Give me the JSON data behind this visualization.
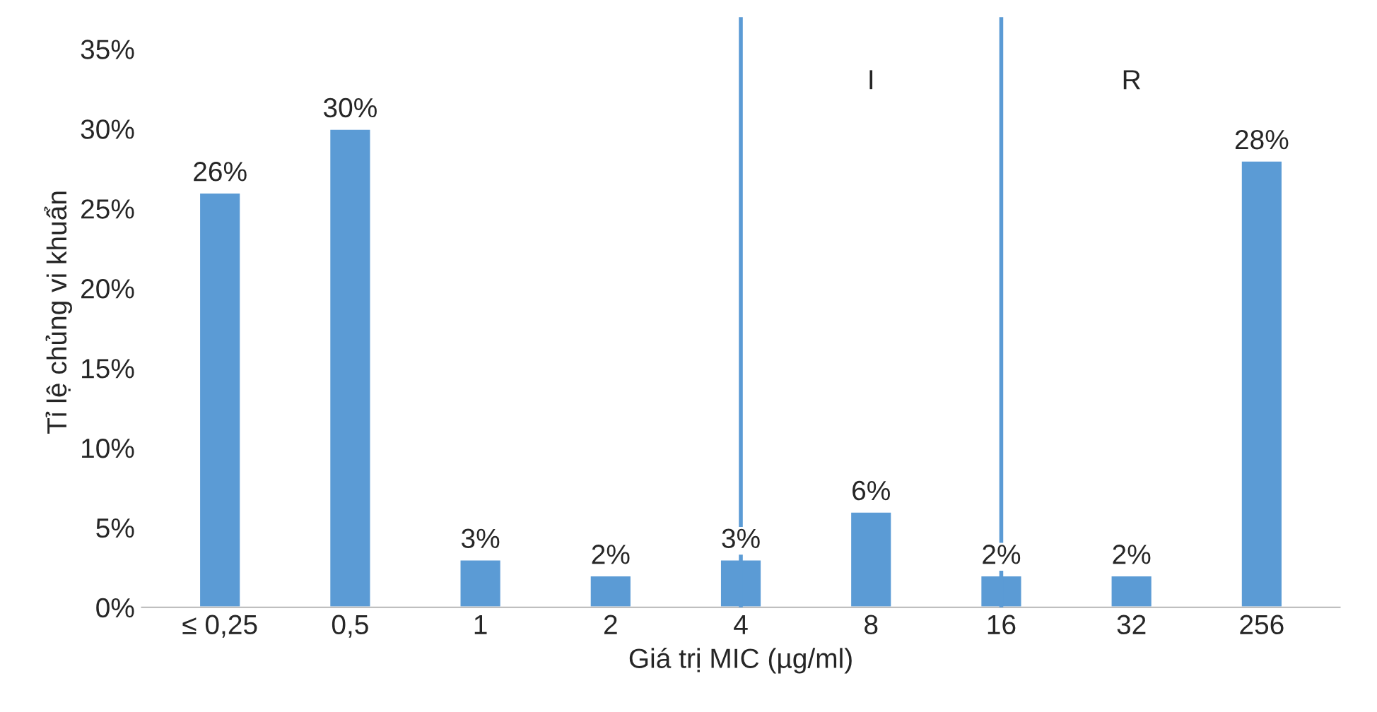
{
  "chart_data": {
    "type": "bar",
    "xlabel": "Giá trị MIC (µg/ml)",
    "ylabel": "Tỉ lệ chủng vi khuẩn",
    "categories": [
      "≤ 0,25",
      "0,5",
      "1",
      "2",
      "4",
      "8",
      "16",
      "32",
      "256"
    ],
    "values": [
      26,
      30,
      3,
      2,
      3,
      6,
      2,
      2,
      28
    ],
    "value_labels": [
      "26%",
      "30%",
      "3%",
      "2%",
      "3%",
      "6%",
      "2%",
      "2%",
      "28%"
    ],
    "color": "#5b9bd5",
    "ylim": [
      0,
      37
    ],
    "yticks": [
      {
        "value": 0,
        "label": "0%"
      },
      {
        "value": 5,
        "label": "5%"
      },
      {
        "value": 10,
        "label": "10%"
      },
      {
        "value": 15,
        "label": "15%"
      },
      {
        "value": 20,
        "label": "20%"
      },
      {
        "value": 25,
        "label": "25%"
      },
      {
        "value": 30,
        "label": "30%"
      },
      {
        "value": 35,
        "label": "35%"
      }
    ],
    "ref_lines": [
      {
        "axis": "x",
        "value": "4",
        "color": "#5b9bd5"
      },
      {
        "axis": "x",
        "value": "16",
        "color": "#5b9bd5"
      }
    ],
    "annotations": [
      "I",
      "R"
    ],
    "grid": false,
    "legend": false
  }
}
